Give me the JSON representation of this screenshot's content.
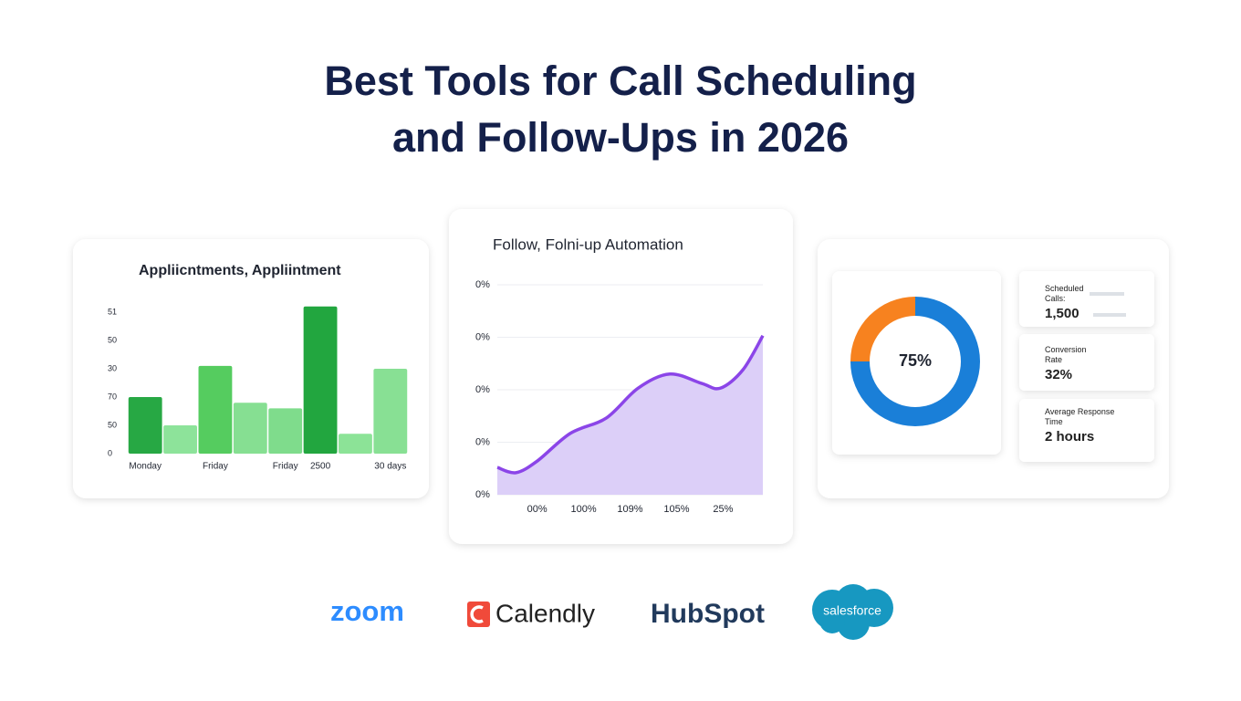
{
  "title_lines": [
    "Best Tools for Call Scheduling",
    "and Follow-Ups in 2026"
  ],
  "chart_data": [
    {
      "type": "bar",
      "title": "Appliicntments, Appliintment",
      "categories": [
        "Monday",
        null,
        "Friday",
        null,
        "Friday",
        "2500",
        null,
        "30 days"
      ],
      "values": [
        2.0,
        1.0,
        3.1,
        1.8,
        1.6,
        5.2,
        0.7,
        3.0
      ],
      "colors": [
        "#27a844",
        "#8de39a",
        "#55cc5f",
        "#86df92",
        "#7fdc8c",
        "#22a63f",
        "#8ce397",
        "#88e094"
      ],
      "ylim": [
        0,
        5.3
      ],
      "yticks": [
        0,
        {
          "value": 1,
          "label": "50"
        },
        {
          "value": 2,
          "label": "70"
        },
        {
          "value": 3,
          "label": "30"
        },
        {
          "value": 4,
          "label": "50"
        },
        {
          "value": 5,
          "label": "51"
        }
      ]
    },
    {
      "type": "area",
      "title": "Follow, Folni-up Automation",
      "x": [
        0,
        0.7,
        1.5,
        2.75,
        4.1,
        5.3,
        6.5,
        7.7,
        8.4,
        9.25,
        10
      ],
      "values": [
        0.52,
        0.42,
        0.64,
        1.17,
        1.46,
        2.03,
        2.3,
        2.12,
        2.03,
        2.38,
        3.03
      ],
      "color": "#8b45e8",
      "fill": "#dccff8",
      "xlim": [
        0,
        10
      ],
      "xticks": [
        {
          "value": 1.5,
          "label": "00%"
        },
        {
          "value": 3.25,
          "label": "100%"
        },
        {
          "value": 5,
          "label": "109%"
        },
        {
          "value": 6.75,
          "label": "105%"
        },
        {
          "value": 8.5,
          "label": "25%"
        }
      ],
      "ylim": [
        0,
        4
      ],
      "yticks": [
        {
          "value": 0,
          "label": "0%"
        },
        {
          "value": 1,
          "label": "0%"
        },
        {
          "value": 2,
          "label": "0%"
        },
        {
          "value": 3,
          "label": "0%"
        },
        {
          "value": 4,
          "label": "0%"
        }
      ],
      "grid": true
    },
    {
      "type": "pie",
      "donut": true,
      "values": [
        75,
        25
      ],
      "value_labels": [
        "75%",
        null
      ],
      "colors": [
        "#1a7fd8",
        "#f7821f"
      ]
    }
  ],
  "stats": [
    {
      "label": "Scheduled Calls:",
      "value": "1,500"
    },
    {
      "label": "Conversion Rate",
      "value": "32%"
    },
    {
      "label": "Average Response Time",
      "value": "2 hours"
    }
  ],
  "logos": [
    "zoom",
    "Calendly",
    "HubSpot",
    "salesforce"
  ]
}
